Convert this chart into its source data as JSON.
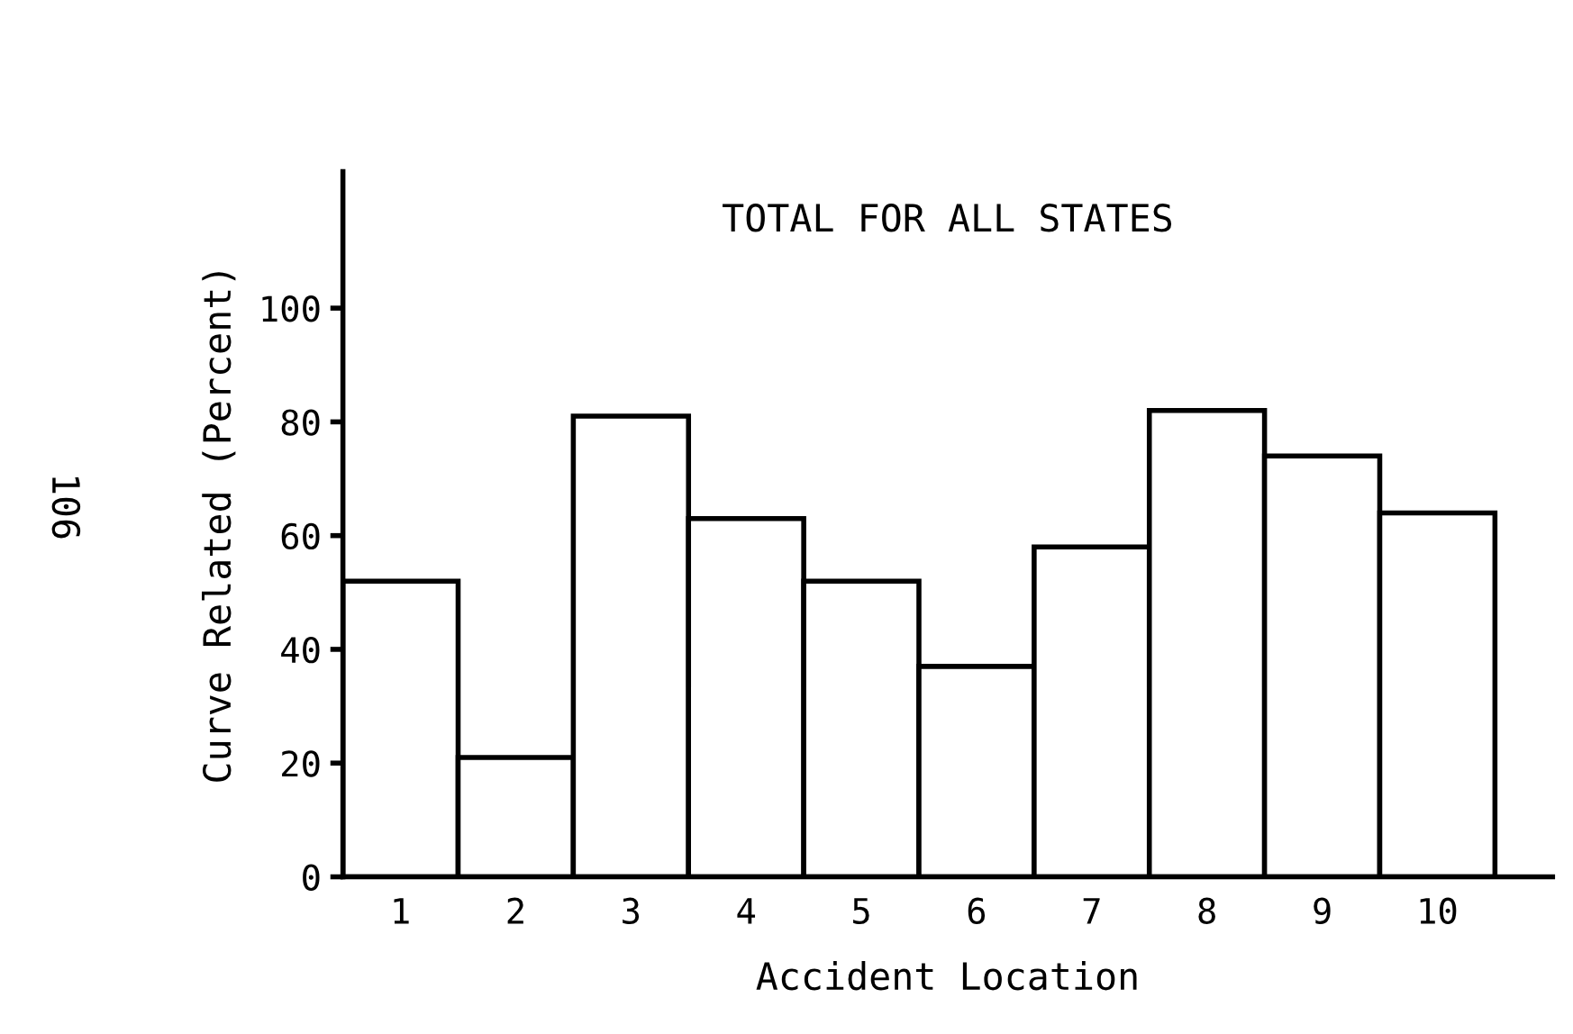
{
  "chart_data": {
    "type": "bar",
    "title": "TOTAL FOR ALL STATES",
    "xlabel": "Accident Location",
    "ylabel": "Curve Related (Percent)",
    "categories": [
      "1",
      "2",
      "3",
      "4",
      "5",
      "6",
      "7",
      "8",
      "9",
      "10"
    ],
    "values": [
      52,
      21,
      81,
      63,
      52,
      37,
      58,
      82,
      74,
      64
    ],
    "color": "#ffffff",
    "ylim": [
      0,
      124
    ],
    "yticks": [
      0,
      20,
      40,
      60,
      80,
      100
    ],
    "grid": false,
    "annotations": [
      "106"
    ]
  }
}
